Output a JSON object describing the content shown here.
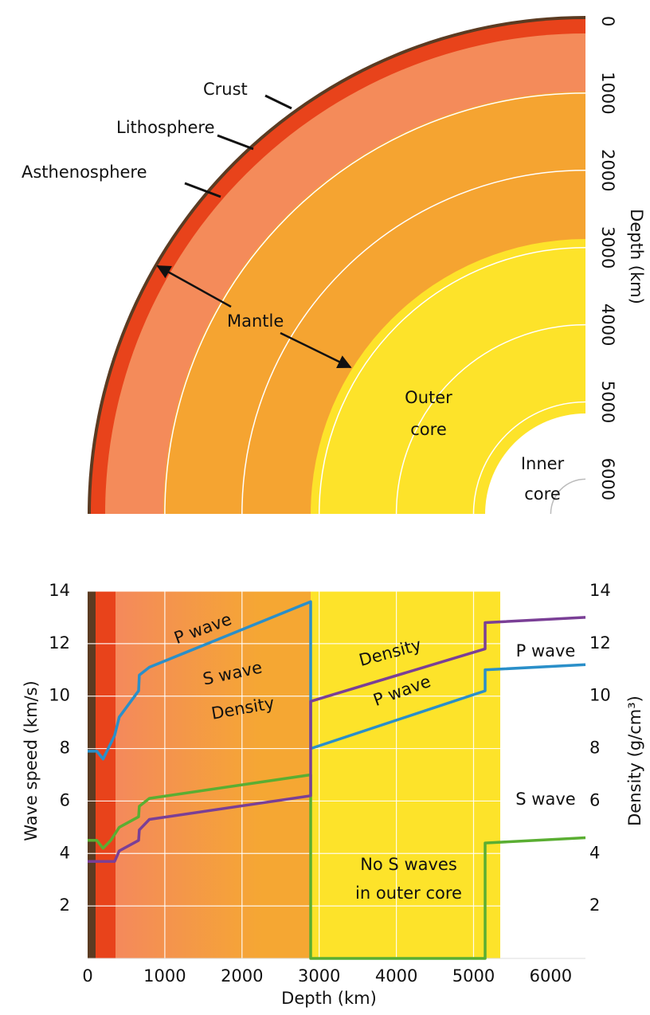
{
  "diagram": {
    "labels": {
      "crust": "Crust",
      "lithosphere": "Lithosphere",
      "asthenosphere": "Asthenosphere",
      "mantle": "Mantle",
      "outer_core": [
        "Outer",
        "core"
      ],
      "inner_core": [
        "Inner",
        "core"
      ]
    },
    "depth_axis_label": "Depth (km)",
    "depth_ticks": [
      0,
      1000,
      2000,
      3000,
      4000,
      5000,
      6000
    ]
  },
  "chart_data": {
    "type": "line",
    "xlabel": "Depth (km)",
    "ylabel": "Wave speed (km/s)",
    "y2label": "Density  (g/cm³)",
    "xlim": [
      0,
      6450
    ],
    "xticks": [
      0,
      1000,
      2000,
      3000,
      4000,
      5000,
      6000
    ],
    "ylim": [
      0,
      14
    ],
    "yticks": [
      2,
      4,
      6,
      8,
      10,
      12,
      14
    ],
    "y2lim": [
      0,
      14
    ],
    "y2ticks": [
      2,
      4,
      6,
      8,
      10,
      12,
      14
    ],
    "grid": true,
    "annotation": [
      "No S waves",
      "in outer core"
    ],
    "series": [
      {
        "name": "P wave",
        "color": "#2a8fc9",
        "x": [
          0,
          120,
          200,
          250,
          350,
          410,
          660,
          670,
          800,
          2890,
          2890,
          5150,
          5150,
          6450
        ],
        "values": [
          7.9,
          7.9,
          7.6,
          7.9,
          8.5,
          9.2,
          10.2,
          10.8,
          11.1,
          13.6,
          8.0,
          10.2,
          11.0,
          11.2
        ]
      },
      {
        "name": "S wave",
        "color": "#5aae32",
        "x": [
          0,
          120,
          200,
          300,
          410,
          660,
          670,
          800,
          2890,
          2890,
          5150,
          5150,
          6450
        ],
        "values": [
          4.5,
          4.5,
          4.2,
          4.5,
          5.0,
          5.4,
          5.8,
          6.1,
          7.0,
          0,
          0,
          4.4,
          4.6
        ]
      },
      {
        "name": "Density",
        "color": "#7a3f96",
        "axis": "y2",
        "x": [
          0,
          350,
          410,
          660,
          670,
          800,
          2890,
          2890,
          5150,
          5150,
          6450
        ],
        "values": [
          3.7,
          3.7,
          4.1,
          4.5,
          4.9,
          5.3,
          6.2,
          9.8,
          11.8,
          12.8,
          13.0
        ]
      }
    ]
  }
}
